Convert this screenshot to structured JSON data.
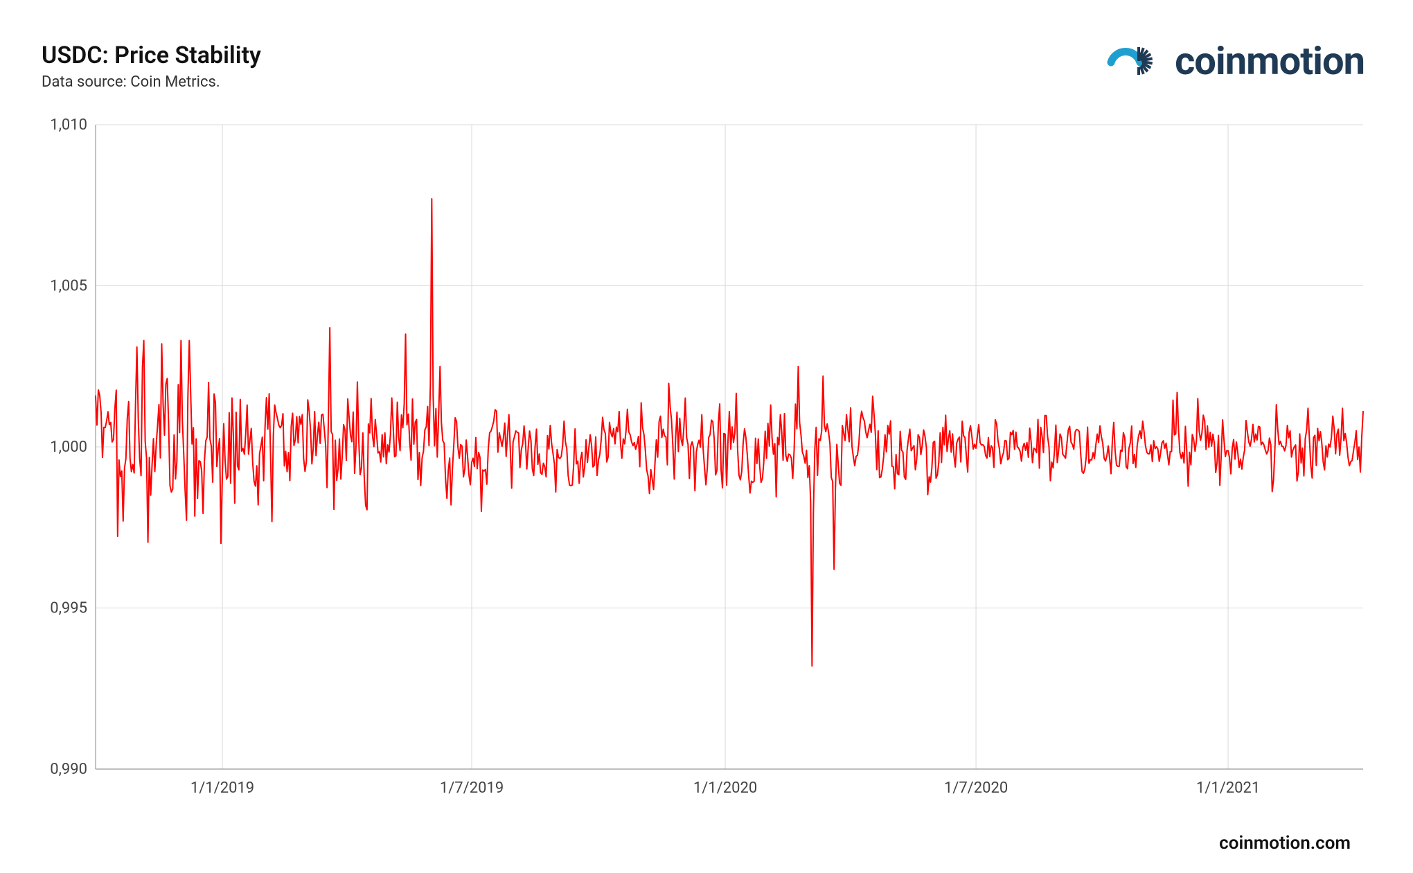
{
  "header": {
    "title": "USDC: Price Stability",
    "subtitle": "Data source: Coin Metrics."
  },
  "logo": {
    "text": "coinmotion",
    "text_color": "#1f3a54",
    "icon_outer_color": "#1f9fcf",
    "icon_inner_color": "#1f3a54"
  },
  "footer": {
    "url": "coinmotion.com"
  },
  "chart": {
    "type": "line",
    "background_color": "#ffffff",
    "grid_color": "#d9d9d9",
    "axis_color": "#999999",
    "series_color": "#ff0000",
    "line_width": 2,
    "ylim": [
      0.99,
      1.01
    ],
    "yticks": [
      0.99,
      0.995,
      1.0,
      1.005,
      1.01
    ],
    "ytick_labels": [
      "0,990",
      "0,995",
      "1,000",
      "1,005",
      "1,010"
    ],
    "x_range_days": 920,
    "xtick_positions_days": [
      92,
      273,
      457,
      639,
      822
    ],
    "xtick_labels": [
      "1/1/2019",
      "1/7/2019",
      "1/1/2020",
      "1/7/2020",
      "1/1/2021"
    ],
    "label_fontsize": 22,
    "title_fontsize": 34,
    "noise_base_amplitude": 0.0007,
    "noise_envelope": [
      [
        0,
        1.6
      ],
      [
        60,
        2.2
      ],
      [
        120,
        1.6
      ],
      [
        180,
        1.2
      ],
      [
        240,
        1.0
      ],
      [
        300,
        0.9
      ],
      [
        400,
        0.85
      ],
      [
        500,
        1.0
      ],
      [
        560,
        0.9
      ],
      [
        650,
        0.7
      ],
      [
        750,
        0.7
      ],
      [
        850,
        0.8
      ],
      [
        920,
        0.9
      ]
    ],
    "spikes": [
      {
        "day": 8,
        "value": 1.0008
      },
      {
        "day": 20,
        "value": 0.9977
      },
      {
        "day": 30,
        "value": 1.0031
      },
      {
        "day": 40,
        "value": 0.9985
      },
      {
        "day": 48,
        "value": 1.0032
      },
      {
        "day": 55,
        "value": 0.9986
      },
      {
        "day": 62,
        "value": 1.0033
      },
      {
        "day": 68,
        "value": 1.0033
      },
      {
        "day": 74,
        "value": 0.9984
      },
      {
        "day": 82,
        "value": 1.002
      },
      {
        "day": 95,
        "value": 0.999
      },
      {
        "day": 110,
        "value": 1.0013
      },
      {
        "day": 118,
        "value": 0.9982
      },
      {
        "day": 150,
        "value": 1.001
      },
      {
        "day": 170,
        "value": 1.0037
      },
      {
        "day": 178,
        "value": 0.999
      },
      {
        "day": 200,
        "value": 1.0015
      },
      {
        "day": 225,
        "value": 1.0035
      },
      {
        "day": 236,
        "value": 0.9988
      },
      {
        "day": 244,
        "value": 1.0077
      },
      {
        "day": 250,
        "value": 1.0025
      },
      {
        "day": 258,
        "value": 0.9982
      },
      {
        "day": 280,
        "value": 0.998
      },
      {
        "day": 300,
        "value": 1.001
      },
      {
        "day": 340,
        "value": 1.0008
      },
      {
        "day": 380,
        "value": 1.0011
      },
      {
        "day": 420,
        "value": 0.999
      },
      {
        "day": 440,
        "value": 1.001
      },
      {
        "day": 460,
        "value": 1.0011
      },
      {
        "day": 490,
        "value": 1.0013
      },
      {
        "day": 510,
        "value": 1.0025
      },
      {
        "day": 520,
        "value": 0.9932
      },
      {
        "day": 528,
        "value": 1.0022
      },
      {
        "day": 536,
        "value": 0.9962
      },
      {
        "day": 545,
        "value": 1.001
      },
      {
        "day": 580,
        "value": 0.9987
      },
      {
        "day": 620,
        "value": 1.0005
      },
      {
        "day": 700,
        "value": 1.0004
      },
      {
        "day": 760,
        "value": 1.0008
      },
      {
        "day": 800,
        "value": 1.0015
      },
      {
        "day": 840,
        "value": 1.0007
      },
      {
        "day": 880,
        "value": 1.0012
      },
      {
        "day": 905,
        "value": 1.0012
      },
      {
        "day": 915,
        "value": 1.0005
      }
    ]
  }
}
